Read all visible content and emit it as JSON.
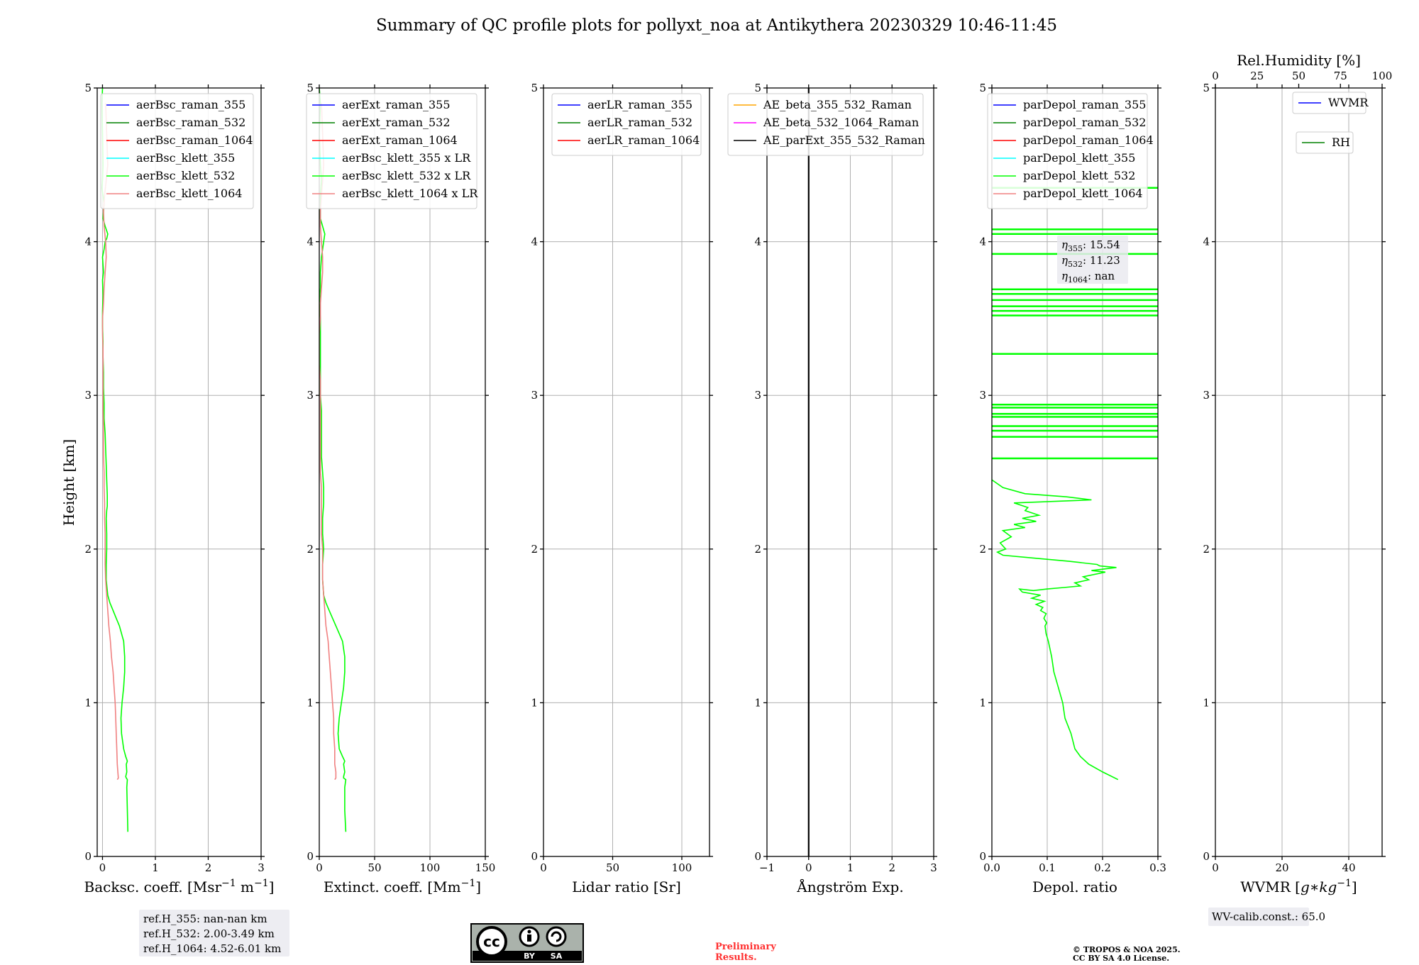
{
  "title": "Summary of QC profile plots for pollyxt_noa at Antikythera 20230329 10:46-11:45",
  "ylabel": "Height [km]",
  "panels": [
    {
      "id": "bsc",
      "xlabel": "Backsc. coeff. [Msr$^{-1}$ m$^{-1}$]",
      "xlabel_text": "Backsc. coeff. [Msr",
      "xlabel_sup1": "−1",
      "xlabel_mid": " m",
      "xlabel_sup2": "−1",
      "xlabel_end": "]",
      "xlim": [
        -0.1,
        3
      ],
      "xticks": [
        "0",
        "1",
        "2",
        "3"
      ],
      "yticks": [
        "0",
        "1",
        "2",
        "3",
        "4",
        "5"
      ],
      "legend": [
        {
          "label": "aerBsc_raman_355",
          "color": "#0000ff"
        },
        {
          "label": "aerBsc_raman_532",
          "color": "#008000"
        },
        {
          "label": "aerBsc_raman_1064",
          "color": "#ff0000"
        },
        {
          "label": "aerBsc_klett_355",
          "color": "#00ffff"
        },
        {
          "label": "aerBsc_klett_532",
          "color": "#00ff00"
        },
        {
          "label": "aerBsc_klett_1064",
          "color": "#f08080"
        }
      ]
    },
    {
      "id": "ext",
      "xlabel_text": "Extinct. coeff. [Mm",
      "xlabel_sup1": "−1",
      "xlabel_end": "]",
      "xlim": [
        0,
        150
      ],
      "xticks": [
        "0",
        "50",
        "100",
        "150"
      ],
      "yticks": [
        "0",
        "1",
        "2",
        "3",
        "4",
        "5"
      ],
      "legend": [
        {
          "label": "aerExt_raman_355",
          "color": "#0000ff"
        },
        {
          "label": "aerExt_raman_532",
          "color": "#008000"
        },
        {
          "label": "aerExt_raman_1064",
          "color": "#ff0000"
        },
        {
          "label": "aerBsc_klett_355 x LR",
          "color": "#00ffff"
        },
        {
          "label": "aerBsc_klett_532 x LR",
          "color": "#00ff00"
        },
        {
          "label": "aerBsc_klett_1064 x LR",
          "color": "#f08080"
        }
      ]
    },
    {
      "id": "lr",
      "xlabel_text": "Lidar ratio [Sr]",
      "xlim": [
        0,
        120
      ],
      "xticks": [
        "0",
        "50",
        "100"
      ],
      "yticks": [
        "0",
        "1",
        "2",
        "3",
        "4",
        "5"
      ],
      "legend": [
        {
          "label": "aerLR_raman_355",
          "color": "#0000ff"
        },
        {
          "label": "aerLR_raman_532",
          "color": "#008000"
        },
        {
          "label": "aerLR_raman_1064",
          "color": "#ff0000"
        }
      ]
    },
    {
      "id": "ae",
      "xlabel_text": "Ångström Exp.",
      "xlim": [
        -1,
        3
      ],
      "xticks": [
        "−1",
        "0",
        "1",
        "2",
        "3"
      ],
      "yticks": [
        "0",
        "1",
        "2",
        "3",
        "4",
        "5"
      ],
      "legend": [
        {
          "label": "AE_beta_355_532_Raman",
          "color": "#ffa500"
        },
        {
          "label": "AE_beta_532_1064_Raman",
          "color": "#ff00ff"
        },
        {
          "label": "AE_parExt_355_532_Raman",
          "color": "#000000"
        }
      ]
    },
    {
      "id": "dep",
      "xlabel_text": "Depol. ratio",
      "xlim": [
        0,
        0.3
      ],
      "xticks": [
        "0.0",
        "0.1",
        "0.2",
        "0.3"
      ],
      "yticks": [
        "0",
        "1",
        "2",
        "3",
        "4",
        "5"
      ],
      "legend": [
        {
          "label": "parDepol_raman_355",
          "color": "#0000ff"
        },
        {
          "label": "parDepol_raman_532",
          "color": "#008000"
        },
        {
          "label": "parDepol_raman_1064",
          "color": "#ff0000"
        },
        {
          "label": "parDepol_klett_355",
          "color": "#00ffff"
        },
        {
          "label": "parDepol_klett_532",
          "color": "#00ff00"
        },
        {
          "label": "parDepol_klett_1064",
          "color": "#f08080"
        }
      ]
    },
    {
      "id": "wv",
      "xlabel_text": "WVMR [",
      "xlabel_math": "g∗kg",
      "xlabel_sup1": "−1",
      "xlabel_end": "]",
      "xlim": [
        0,
        50
      ],
      "xticks": [
        "0",
        "20",
        "40"
      ],
      "yticks": [
        "0",
        "1",
        "2",
        "3",
        "4",
        "5"
      ],
      "top_label": "Rel.Humidity [%]",
      "top_xticks": [
        "0",
        "25",
        "50",
        "75",
        "100"
      ],
      "legend": [
        {
          "label": "WVMR",
          "color": "#0000ff"
        },
        {
          "label": "RH",
          "color": "#008000"
        }
      ]
    }
  ],
  "annotations": {
    "eta_355_name": "η",
    "eta_355_sub": "355",
    "eta_355_val": ": 15.54",
    "eta_532_name": "η",
    "eta_532_sub": "532",
    "eta_532_val": ": 11.23",
    "eta_1064_name": "η",
    "eta_1064_sub": "1064",
    "eta_1064_val": ": nan",
    "refH_355": "ref.H_355: nan-nan km",
    "refH_532": "ref.H_532: 2.00-3.49 km",
    "refH_1064": "ref.H_1064: 4.52-6.01 km",
    "wv_calib": "WV-calib.const.: 65.0",
    "preliminary": "Preliminary",
    "results": "Results.",
    "copyright": "© TROPOS & NOA 2025.",
    "license": "CC BY SA 4.0 License.",
    "cc_by": "BY",
    "cc_sa": "SA",
    "cc_logo": "cc"
  },
  "chart_data": [
    {
      "type": "line",
      "panel": "bsc",
      "title": "",
      "xlabel": "Backsc. coeff. [Msr-1 m-1]",
      "ylabel": "Height [km]",
      "xlim": [
        -0.1,
        3
      ],
      "ylim": [
        0,
        5
      ],
      "series": [
        {
          "name": "aerBsc_klett_532",
          "x": [
            0.48,
            0.47,
            0.46,
            0.47,
            0.45,
            0.44,
            0.46,
            0.45,
            0.47,
            0.44,
            0.4,
            0.36,
            0.35,
            0.37,
            0.4,
            0.42,
            0.42,
            0.41,
            0.4,
            0.36,
            0.32,
            0.26,
            0.2,
            0.14,
            0.1,
            0.07,
            0.07,
            0.08,
            0.08,
            0.07,
            0.08,
            0.09,
            0.09,
            0.08,
            0.07,
            0.06,
            0.05,
            0.03,
            0.03,
            0.02,
            0.02,
            0.01,
            0.01,
            0.0,
            0.0,
            0.01,
            0.0,
            0.02,
            0.01,
            0.0,
            0.03,
            0.05,
            0.08,
            0.1,
            0.05,
            0.01,
            0.02,
            0.03,
            0.01,
            -0.01,
            0.0,
            0.01,
            0.0,
            -0.01,
            0.0
          ],
          "y": [
            0.16,
            0.3,
            0.45,
            0.5,
            0.51,
            0.52,
            0.55,
            0.6,
            0.62,
            0.65,
            0.7,
            0.8,
            0.9,
            1.0,
            1.1,
            1.2,
            1.3,
            1.35,
            1.4,
            1.45,
            1.5,
            1.55,
            1.6,
            1.65,
            1.7,
            1.8,
            1.9,
            2.0,
            2.1,
            2.2,
            2.25,
            2.28,
            2.35,
            2.45,
            2.55,
            2.65,
            2.75,
            2.85,
            2.95,
            3.05,
            3.15,
            3.25,
            3.35,
            3.45,
            3.55,
            3.65,
            3.75,
            3.8,
            3.85,
            3.9,
            3.95,
            4.0,
            4.02,
            4.05,
            4.1,
            4.15,
            4.2,
            4.25,
            4.3,
            4.35,
            4.4,
            4.5,
            4.7,
            4.9,
            5.0
          ]
        },
        {
          "name": "aerBsc_klett_1064",
          "x": [
            0.28,
            0.3,
            0.29,
            0.28,
            0.27,
            0.26,
            0.25,
            0.24,
            0.22,
            0.2,
            0.17,
            0.15,
            0.12,
            0.1,
            0.08,
            0.06,
            0.05,
            0.05,
            0.05,
            0.04,
            0.04,
            0.03,
            0.03,
            0.02,
            0.02,
            0.02,
            0.01,
            0.01,
            0.01,
            0.01,
            0.01,
            0.0,
            0.0,
            0.02,
            0.03,
            0.05,
            0.07,
            0.06,
            0.03,
            0.02,
            0.04,
            0.07,
            0.1,
            0.08,
            0.06
          ],
          "y": [
            0.5,
            0.51,
            0.55,
            0.6,
            0.7,
            0.8,
            0.9,
            1.0,
            1.1,
            1.2,
            1.3,
            1.4,
            1.5,
            1.6,
            1.7,
            1.8,
            1.9,
            2.0,
            2.1,
            2.2,
            2.3,
            2.4,
            2.5,
            2.6,
            2.7,
            2.8,
            2.9,
            3.0,
            3.1,
            3.2,
            3.3,
            3.4,
            3.5,
            3.6,
            3.7,
            3.8,
            3.9,
            4.0,
            4.1,
            4.2,
            4.3,
            4.4,
            4.5,
            4.7,
            4.9
          ]
        }
      ]
    },
    {
      "type": "line",
      "panel": "ext",
      "title": "",
      "xlabel": "Extinct. coeff. [Mm-1]",
      "ylabel": "Height [km]",
      "xlim": [
        0,
        150
      ],
      "ylim": [
        0,
        5
      ],
      "series": [
        {
          "name": "aerBsc_klett_532 x LR",
          "x": [
            24,
            23,
            23,
            24,
            22,
            22,
            23,
            22,
            23,
            21,
            18,
            17,
            18,
            20,
            22,
            23,
            23,
            22,
            21,
            18,
            15,
            12,
            9,
            6,
            4,
            3,
            3,
            4,
            3,
            3,
            4,
            4,
            3,
            2,
            2,
            2,
            2,
            1,
            1,
            1,
            1,
            1,
            1,
            0,
            1,
            1,
            2,
            3,
            4,
            5,
            3,
            1,
            1,
            1,
            2,
            1,
            0,
            1,
            0
          ],
          "y": [
            0.16,
            0.3,
            0.45,
            0.5,
            0.51,
            0.52,
            0.55,
            0.6,
            0.62,
            0.65,
            0.7,
            0.8,
            0.9,
            1.0,
            1.1,
            1.2,
            1.3,
            1.35,
            1.4,
            1.45,
            1.5,
            1.55,
            1.6,
            1.65,
            1.7,
            1.8,
            1.9,
            2.0,
            2.1,
            2.2,
            2.3,
            2.4,
            2.5,
            2.6,
            2.7,
            2.8,
            2.9,
            3.0,
            3.1,
            3.2,
            3.3,
            3.4,
            3.5,
            3.6,
            3.7,
            3.8,
            3.9,
            3.95,
            4.0,
            4.05,
            4.1,
            4.15,
            4.2,
            4.3,
            4.4,
            4.5,
            4.7,
            4.9,
            5.0
          ]
        },
        {
          "name": "aerBsc_klett_1064 x LR",
          "x": [
            14,
            15,
            15,
            14,
            14,
            13,
            13,
            12,
            11,
            10,
            9,
            8,
            6,
            5,
            4,
            3,
            3,
            3,
            2,
            2,
            2,
            2,
            1,
            1,
            1,
            1,
            1,
            1,
            1,
            0,
            0,
            0,
            1,
            1,
            2,
            3,
            3,
            2,
            1,
            1,
            2,
            3,
            4,
            3,
            2
          ],
          "y": [
            0.5,
            0.51,
            0.55,
            0.6,
            0.7,
            0.8,
            0.9,
            1.0,
            1.1,
            1.2,
            1.3,
            1.4,
            1.5,
            1.6,
            1.7,
            1.8,
            1.9,
            2.0,
            2.1,
            2.2,
            2.3,
            2.4,
            2.5,
            2.6,
            2.7,
            2.8,
            2.9,
            3.0,
            3.1,
            3.2,
            3.3,
            3.4,
            3.5,
            3.6,
            3.7,
            3.8,
            3.9,
            4.0,
            4.1,
            4.2,
            4.3,
            4.4,
            4.5,
            4.7,
            4.9
          ]
        }
      ]
    },
    {
      "type": "line",
      "panel": "lr",
      "title": "",
      "xlabel": "Lidar ratio [Sr]",
      "ylabel": "Height [km]",
      "xlim": [
        0,
        120
      ],
      "ylim": [
        0,
        5
      ],
      "series": []
    },
    {
      "type": "line",
      "panel": "ae",
      "title": "",
      "xlabel": "Ångström Exp.",
      "ylabel": "Height [km]",
      "xlim": [
        -1,
        3
      ],
      "ylim": [
        0,
        5
      ],
      "series": [
        {
          "name": "AE_parExt_355_532_Raman",
          "x": [
            0,
            0
          ],
          "y": [
            0,
            5
          ]
        }
      ]
    },
    {
      "type": "line",
      "panel": "dep",
      "title": "",
      "xlabel": "Depol. ratio",
      "ylabel": "Height [km]",
      "xlim": [
        0,
        0.3
      ],
      "ylim": [
        0,
        5
      ],
      "series": [
        {
          "name": "parDepol_klett_532",
          "x": [
            0.228,
            0.2,
            0.175,
            0.16,
            0.15,
            0.143,
            0.132,
            0.128,
            0.12,
            0.112,
            0.108,
            0.102,
            0.098,
            0.096,
            0.099,
            0.094,
            0.098,
            0.088,
            0.092,
            0.08,
            0.095,
            0.072,
            0.088,
            0.055,
            0.05,
            0.075,
            0.1,
            0.13,
            0.16,
            0.15,
            0.175,
            0.165,
            0.205,
            0.18,
            0.225,
            0.195,
            0.19,
            0.14,
            0.08,
            0.02,
            0.01,
            0.025,
            0.015,
            0.035,
            0.02,
            0.06,
            0.04,
            0.08,
            0.055,
            0.085,
            0.06,
            0.065,
            0.04,
            0.11,
            0.18,
            0.135,
            0.06,
            0.02,
            0.0
          ],
          "y": [
            0.5,
            0.55,
            0.6,
            0.65,
            0.7,
            0.8,
            0.9,
            1.0,
            1.1,
            1.2,
            1.3,
            1.4,
            1.45,
            1.5,
            1.52,
            1.55,
            1.58,
            1.6,
            1.62,
            1.64,
            1.66,
            1.68,
            1.7,
            1.72,
            1.74,
            1.73,
            1.74,
            1.75,
            1.76,
            1.78,
            1.8,
            1.82,
            1.85,
            1.86,
            1.88,
            1.89,
            1.9,
            1.92,
            1.94,
            1.96,
            1.98,
            2.0,
            2.04,
            2.08,
            2.12,
            2.14,
            2.16,
            2.18,
            2.2,
            2.22,
            2.25,
            2.27,
            2.3,
            2.31,
            2.32,
            2.34,
            2.36,
            2.4,
            2.45
          ]
        },
        {
          "name": "parDepol_klett_532 (saturated layers)",
          "x": [
            0.3,
            0.3,
            0.3,
            0.3,
            0.3,
            0.3,
            0.3,
            0.3,
            0.3,
            0.3,
            0.3,
            0.3,
            0.3,
            0.3,
            0.3,
            0.3,
            0.3,
            0.3,
            0.3
          ],
          "y": [
            2.59,
            2.73,
            2.77,
            2.8,
            2.86,
            2.88,
            2.92,
            2.94,
            3.27,
            3.52,
            3.55,
            3.58,
            3.62,
            3.66,
            3.69,
            3.92,
            4.05,
            4.08,
            4.35
          ]
        }
      ]
    },
    {
      "type": "line",
      "panel": "wv",
      "title": "",
      "xlabel": "WVMR [g*kg-1]",
      "ylabel": "Height [km]",
      "xlim": [
        0,
        50
      ],
      "ylim": [
        0,
        5
      ],
      "top_axis": {
        "label": "Rel.Humidity [%]",
        "xlim": [
          0,
          100
        ]
      },
      "series": []
    }
  ]
}
